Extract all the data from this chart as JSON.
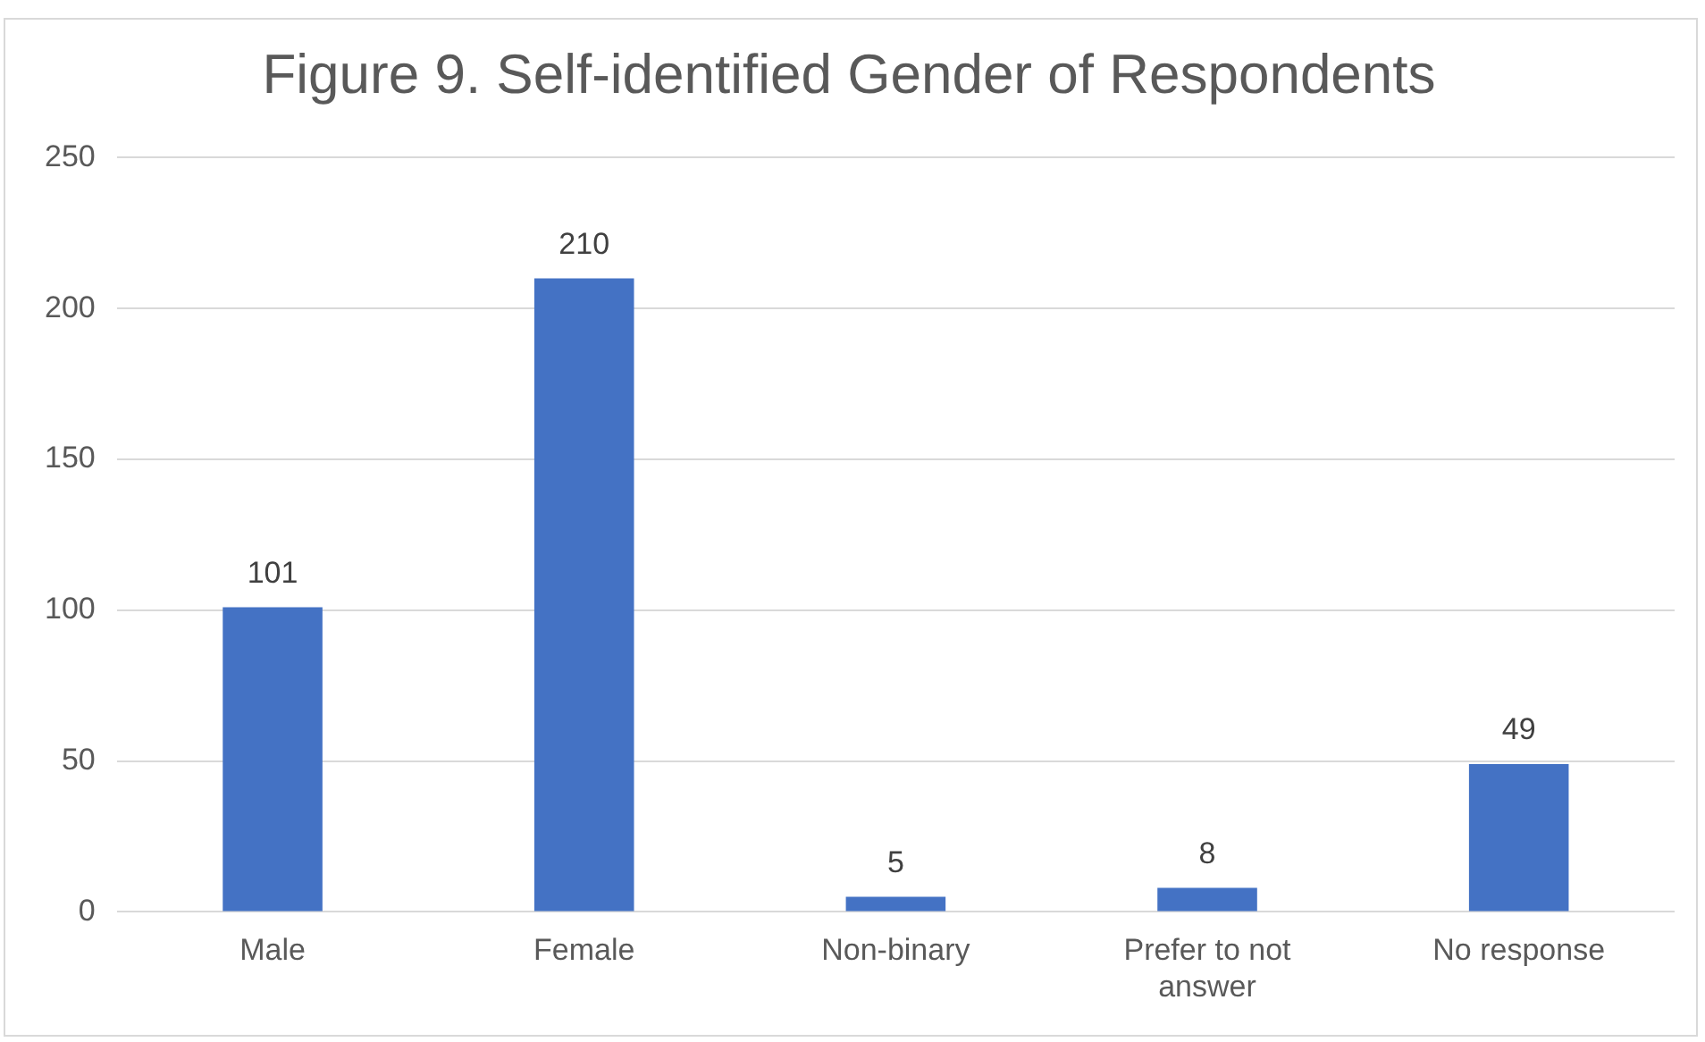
{
  "chart_data": {
    "type": "bar",
    "title": "Figure 9. Self-identified Gender of Respondents",
    "categories": [
      "Male",
      "Female",
      "Non-binary",
      "Prefer to not answer",
      "No response"
    ],
    "values": [
      101,
      210,
      5,
      8,
      49
    ],
    "color": "#4472c4",
    "ylim": [
      0,
      250
    ],
    "yticks": [
      0,
      50,
      100,
      150,
      200,
      250
    ],
    "grid": "y",
    "data_labels": true,
    "legend": false
  }
}
